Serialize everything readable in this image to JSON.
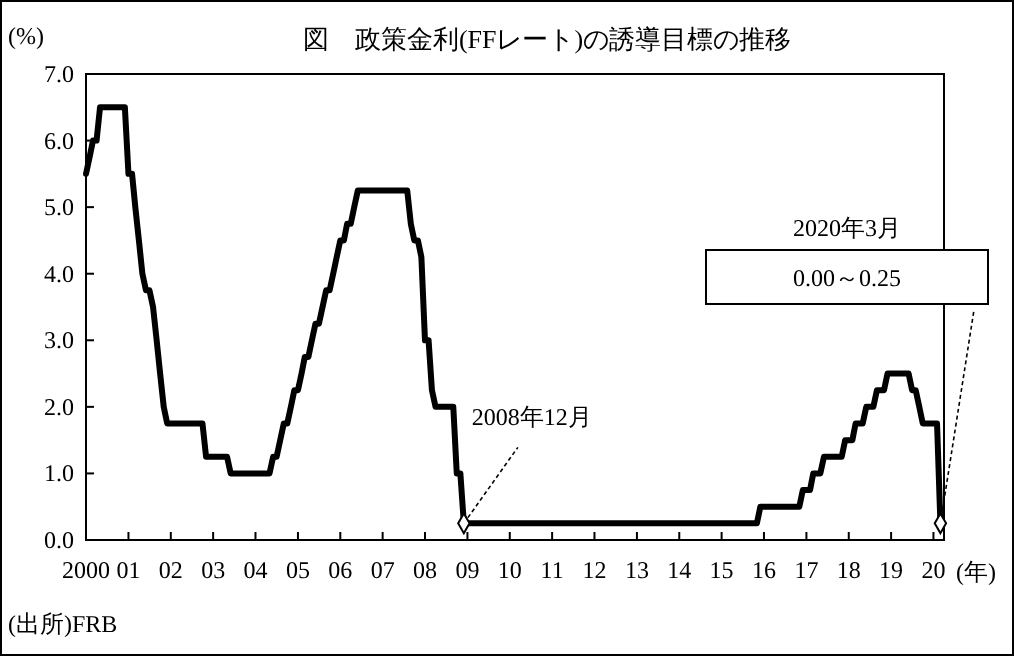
{
  "chart_data": {
    "type": "line",
    "title": "図　政策金利(FFレート)の誘導目標の推移",
    "ylabel": "(%)",
    "xlabel": "(年)",
    "x": [
      "2000-01",
      "2000-02",
      "2000-03",
      "2000-04",
      "2000-05",
      "2000-12",
      "2001-01",
      "2001-02",
      "2001-03",
      "2001-04",
      "2001-05",
      "2001-06",
      "2001-07",
      "2001-08",
      "2001-09",
      "2001-10",
      "2001-11",
      "2001-12",
      "2002-10",
      "2002-11",
      "2003-05",
      "2003-06",
      "2004-05",
      "2004-06",
      "2004-07",
      "2004-08",
      "2004-09",
      "2004-10",
      "2004-11",
      "2004-12",
      "2005-01",
      "2005-02",
      "2005-03",
      "2005-04",
      "2005-05",
      "2005-06",
      "2005-07",
      "2005-08",
      "2005-09",
      "2005-10",
      "2005-11",
      "2005-12",
      "2006-01",
      "2006-02",
      "2006-03",
      "2006-04",
      "2006-05",
      "2006-06",
      "2007-08",
      "2007-09",
      "2007-10",
      "2007-11",
      "2007-12",
      "2008-01",
      "2008-02",
      "2008-03",
      "2008-04",
      "2008-09",
      "2008-10",
      "2008-11",
      "2008-12",
      "2015-11",
      "2015-12",
      "2016-11",
      "2016-12",
      "2017-02",
      "2017-03",
      "2017-05",
      "2017-06",
      "2017-11",
      "2017-12",
      "2018-02",
      "2018-03",
      "2018-05",
      "2018-06",
      "2018-08",
      "2018-09",
      "2018-11",
      "2018-12",
      "2019-06",
      "2019-07",
      "2019-08",
      "2019-09",
      "2019-10",
      "2020-02",
      "2020-03"
    ],
    "series": [
      {
        "color": "#000000",
        "values": [
          5.5,
          5.75,
          6.0,
          6.0,
          6.5,
          6.5,
          5.5,
          5.5,
          5.0,
          4.5,
          4.0,
          3.75,
          3.75,
          3.5,
          3.0,
          2.5,
          2.0,
          1.75,
          1.75,
          1.25,
          1.25,
          1.0,
          1.0,
          1.25,
          1.25,
          1.5,
          1.75,
          1.75,
          2.0,
          2.25,
          2.25,
          2.5,
          2.75,
          2.75,
          3.0,
          3.25,
          3.25,
          3.5,
          3.75,
          3.75,
          4.0,
          4.25,
          4.5,
          4.5,
          4.75,
          4.75,
          5.0,
          5.25,
          5.25,
          4.75,
          4.5,
          4.5,
          4.25,
          3.0,
          3.0,
          2.25,
          2.0,
          2.0,
          1.0,
          1.0,
          0.25,
          0.25,
          0.5,
          0.5,
          0.75,
          0.75,
          1.0,
          1.0,
          1.25,
          1.25,
          1.5,
          1.5,
          1.75,
          1.75,
          2.0,
          2.0,
          2.25,
          2.25,
          2.5,
          2.5,
          2.25,
          2.25,
          2.0,
          1.75,
          1.75,
          0.25
        ]
      }
    ],
    "xlim": [
      "2000-01",
      "2020-04"
    ],
    "xticks": [
      {
        "value": "2000-01",
        "label": "2000"
      },
      {
        "value": "2001-01",
        "label": "01"
      },
      {
        "value": "2002-01",
        "label": "02"
      },
      {
        "value": "2003-01",
        "label": "03"
      },
      {
        "value": "2004-01",
        "label": "04"
      },
      {
        "value": "2005-01",
        "label": "05"
      },
      {
        "value": "2006-01",
        "label": "06"
      },
      {
        "value": "2007-01",
        "label": "07"
      },
      {
        "value": "2008-01",
        "label": "08"
      },
      {
        "value": "2009-01",
        "label": "09"
      },
      {
        "value": "2010-01",
        "label": "10"
      },
      {
        "value": "2011-01",
        "label": "11"
      },
      {
        "value": "2012-01",
        "label": "12"
      },
      {
        "value": "2013-01",
        "label": "13"
      },
      {
        "value": "2014-01",
        "label": "14"
      },
      {
        "value": "2015-01",
        "label": "15"
      },
      {
        "value": "2016-01",
        "label": "16"
      },
      {
        "value": "2017-01",
        "label": "17"
      },
      {
        "value": "2018-01",
        "label": "18"
      },
      {
        "value": "2019-01",
        "label": "19"
      },
      {
        "value": "2020-01",
        "label": "20"
      }
    ],
    "ylim": [
      0,
      7
    ],
    "yticks": [
      {
        "value": 0,
        "label": "0.0"
      },
      {
        "value": 1,
        "label": "1.0"
      },
      {
        "value": 2,
        "label": "2.0"
      },
      {
        "value": 3,
        "label": "3.0"
      },
      {
        "value": 4,
        "label": "4.0"
      },
      {
        "value": 5,
        "label": "5.0"
      },
      {
        "value": 6,
        "label": "6.0"
      },
      {
        "value": 7,
        "label": "7.0"
      }
    ],
    "grid": false,
    "marker": "none",
    "line_style": "solid",
    "annotations": [
      {
        "text": "2008年12月",
        "x": "2008-12",
        "y": 0.25
      },
      "2020年3月",
      "0.00～0.25",
      "(出所)FRB"
    ]
  }
}
